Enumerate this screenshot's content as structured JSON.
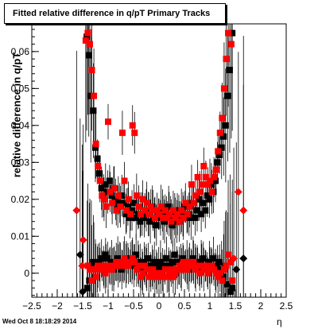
{
  "title": "Fitted relative difference in q/pT  Primary Tracks",
  "timestamp": "Wed Oct  8 18:18:29 2014",
  "chart_data": {
    "type": "scatter",
    "xlabel": "η",
    "ylabel": "relative difference in q/pT",
    "xlim": [
      -2.5,
      2.5
    ],
    "ylim": [
      -0.0065,
      0.0675
    ],
    "x_ticks": [
      -2.5,
      -2,
      -1.5,
      -1,
      -0.5,
      0,
      0.5,
      1,
      1.5,
      2,
      2.5
    ],
    "x_tick_labels": [
      "−2.5",
      "−2",
      "−1.5",
      "−1",
      "−0.5",
      "0",
      "0.5",
      "1",
      "1.5",
      "2",
      "2.5"
    ],
    "y_ticks": [
      0,
      0.01,
      0.02,
      0.03,
      0.04,
      0.05,
      0.06
    ],
    "y_tick_labels": [
      "0",
      "0.01",
      "0.02",
      "0.03",
      "0.04",
      "0.05",
      "0.06"
    ],
    "grid": false,
    "legend": "none",
    "series": [
      {
        "color": "#000000",
        "marker": "square",
        "points": [
          [
            -1.42,
            0.064
          ],
          [
            -1.38,
            0.059
          ],
          [
            -1.34,
            0.048
          ],
          [
            -1.29,
            0.044
          ],
          [
            -1.25,
            0.034
          ],
          [
            -1.21,
            0.031
          ],
          [
            -1.17,
            0.027
          ],
          [
            -1.13,
            0.023
          ],
          [
            -1.09,
            0.021
          ],
          [
            -1.05,
            0.024
          ],
          [
            -1.01,
            0.022
          ],
          [
            -0.97,
            0.025
          ],
          [
            -0.93,
            0.021
          ],
          [
            -0.89,
            0.023
          ],
          [
            -0.85,
            0.02
          ],
          [
            -0.81,
            0.018
          ],
          [
            -0.77,
            0.019
          ],
          [
            -0.73,
            0.021
          ],
          [
            -0.69,
            0.019
          ],
          [
            -0.65,
            0.016
          ],
          [
            -0.61,
            0.018
          ],
          [
            -0.57,
            0.015
          ],
          [
            -0.53,
            0.017
          ],
          [
            -0.49,
            0.019
          ],
          [
            -0.45,
            0.015
          ],
          [
            -0.41,
            0.016
          ],
          [
            -0.37,
            0.014
          ],
          [
            -0.33,
            0.016
          ],
          [
            -0.29,
            0.015
          ],
          [
            -0.25,
            0.017
          ],
          [
            -0.21,
            0.016
          ],
          [
            -0.17,
            0.014
          ],
          [
            -0.13,
            0.018
          ],
          [
            -0.09,
            0.015
          ],
          [
            -0.05,
            0.013
          ],
          [
            -0.01,
            0.016
          ],
          [
            0.03,
            0.015
          ],
          [
            0.07,
            0.017
          ],
          [
            0.11,
            0.014
          ],
          [
            0.15,
            0.016
          ],
          [
            0.19,
            0.018
          ],
          [
            0.23,
            0.015
          ],
          [
            0.27,
            0.013
          ],
          [
            0.31,
            0.016
          ],
          [
            0.35,
            0.014
          ],
          [
            0.39,
            0.017
          ],
          [
            0.43,
            0.015
          ],
          [
            0.47,
            0.016
          ],
          [
            0.51,
            0.018
          ],
          [
            0.55,
            0.015
          ],
          [
            0.59,
            0.016
          ],
          [
            0.63,
            0.015
          ],
          [
            0.67,
            0.019
          ],
          [
            0.71,
            0.015
          ],
          [
            0.75,
            0.017
          ],
          [
            0.79,
            0.02
          ],
          [
            0.83,
            0.016
          ],
          [
            0.87,
            0.019
          ],
          [
            0.91,
            0.017
          ],
          [
            0.95,
            0.021
          ],
          [
            0.99,
            0.02
          ],
          [
            1.03,
            0.024
          ],
          [
            1.07,
            0.022
          ],
          [
            1.11,
            0.025
          ],
          [
            1.15,
            0.03
          ],
          [
            1.19,
            0.032
          ],
          [
            1.23,
            0.034
          ],
          [
            1.27,
            0.037
          ],
          [
            1.31,
            0.04
          ],
          [
            1.35,
            0.048
          ],
          [
            1.39,
            0.055
          ],
          [
            1.44,
            0.065
          ],
          [
            -1.41,
            -0.004
          ],
          [
            -1.37,
            -0.002
          ],
          [
            -1.33,
            0.002
          ],
          [
            -1.29,
            0.003
          ],
          [
            -1.25,
            -0.001
          ],
          [
            -1.21,
            0.001
          ],
          [
            -1.17,
            0.003
          ],
          [
            -1.13,
            0.004
          ],
          [
            -1.09,
            0.002
          ],
          [
            -1.05,
            0.005
          ],
          [
            -1.01,
            0.004
          ],
          [
            -0.97,
            0.002
          ],
          [
            -0.93,
            0.003
          ],
          [
            -0.89,
            0.001
          ],
          [
            -0.85,
            0.002
          ],
          [
            -0.81,
            0.004
          ],
          [
            -0.77,
            0.003
          ],
          [
            -0.73,
            0.001
          ],
          [
            -0.69,
            0.003
          ],
          [
            -0.65,
            0.002
          ],
          [
            -0.61,
            0.004
          ],
          [
            -0.57,
            0.002
          ],
          [
            -0.53,
            0.003
          ],
          [
            -0.49,
            0.002
          ],
          [
            -0.45,
            0.005
          ],
          [
            -0.41,
            0.003
          ],
          [
            -0.37,
            0.002
          ],
          [
            -0.33,
            0.001
          ],
          [
            -0.29,
            0.003
          ],
          [
            -0.25,
            0.002
          ],
          [
            -0.21,
            0.004
          ],
          [
            -0.17,
            0.001
          ],
          [
            -0.13,
            0.002
          ],
          [
            -0.09,
            0.003
          ],
          [
            -0.05,
            0.001
          ],
          [
            -0.01,
            0.002
          ],
          [
            0.03,
            0.003
          ],
          [
            0.07,
            0.001
          ],
          [
            0.11,
            0.002
          ],
          [
            0.15,
            0.004
          ],
          [
            0.19,
            0.001
          ],
          [
            0.23,
            0.002
          ],
          [
            0.27,
            0.003
          ],
          [
            0.31,
            0.005
          ],
          [
            0.35,
            0.003
          ],
          [
            0.39,
            0.001
          ],
          [
            0.43,
            0.002
          ],
          [
            0.47,
            0.004
          ],
          [
            0.51,
            0.002
          ],
          [
            0.55,
            0.003
          ],
          [
            0.59,
            0.001
          ],
          [
            0.63,
            0.002
          ],
          [
            0.67,
            0.004
          ],
          [
            0.71,
            0.002
          ],
          [
            0.75,
            0.003
          ],
          [
            0.79,
            0.001
          ],
          [
            0.83,
            0.003
          ],
          [
            0.87,
            0.004
          ],
          [
            0.91,
            0.002
          ],
          [
            0.95,
            0.001
          ],
          [
            0.99,
            0.003
          ],
          [
            1.03,
            0.002
          ],
          [
            1.07,
            0.004
          ],
          [
            1.11,
            0.001
          ],
          [
            1.15,
            0.002
          ],
          [
            1.19,
            0.003
          ],
          [
            1.23,
            0.001
          ],
          [
            1.27,
            -0.001
          ],
          [
            1.31,
            0.002
          ],
          [
            1.35,
            -0.003
          ],
          [
            1.4,
            -0.005
          ],
          [
            1.44,
            -0.004
          ],
          [
            -1.5,
            -0.005
          ],
          [
            -1.55,
            0.005
          ],
          [
            1.52,
            0.001
          ],
          [
            1.66,
            0.004
          ]
        ]
      },
      {
        "color": "#ff0000",
        "marker": "square",
        "points": [
          [
            -1.44,
            0.063
          ],
          [
            -1.4,
            0.065
          ],
          [
            -1.36,
            0.062
          ],
          [
            -1.32,
            0.055
          ],
          [
            -1.28,
            0.048
          ],
          [
            -1.24,
            0.035
          ],
          [
            -1.2,
            0.029
          ],
          [
            -1.16,
            0.025
          ],
          [
            -1.12,
            0.021
          ],
          [
            -1.08,
            0.02
          ],
          [
            -1.04,
            0.018
          ],
          [
            -1.0,
            0.041
          ],
          [
            -0.96,
            0.022
          ],
          [
            -0.92,
            0.019
          ],
          [
            -0.88,
            0.023
          ],
          [
            -0.84,
            0.017
          ],
          [
            -0.8,
            0.021
          ],
          [
            -0.76,
            0.018
          ],
          [
            -0.72,
            0.038
          ],
          [
            -0.68,
            0.025
          ],
          [
            -0.64,
            0.017
          ],
          [
            -0.6,
            0.02
          ],
          [
            -0.56,
            0.016
          ],
          [
            -0.52,
            0.04
          ],
          [
            -0.48,
            0.038
          ],
          [
            -0.44,
            0.021
          ],
          [
            -0.4,
            0.018
          ],
          [
            -0.36,
            0.016
          ],
          [
            -0.32,
            0.02
          ],
          [
            -0.28,
            0.017
          ],
          [
            -0.24,
            0.019
          ],
          [
            -0.2,
            0.016
          ],
          [
            -0.16,
            0.018
          ],
          [
            -0.12,
            0.017
          ],
          [
            -0.08,
            0.015
          ],
          [
            -0.04,
            0.017
          ],
          [
            0.0,
            0.016
          ],
          [
            0.04,
            0.018
          ],
          [
            0.08,
            0.015
          ],
          [
            0.12,
            0.017
          ],
          [
            0.16,
            0.015
          ],
          [
            0.2,
            0.016
          ],
          [
            0.24,
            0.014
          ],
          [
            0.28,
            0.017
          ],
          [
            0.32,
            0.015
          ],
          [
            0.36,
            0.016
          ],
          [
            0.4,
            0.014
          ],
          [
            0.44,
            0.017
          ],
          [
            0.48,
            0.015
          ],
          [
            0.52,
            0.019
          ],
          [
            0.56,
            0.016
          ],
          [
            0.6,
            0.018
          ],
          [
            0.64,
            0.024
          ],
          [
            0.68,
            0.019
          ],
          [
            0.72,
            0.021
          ],
          [
            0.76,
            0.026
          ],
          [
            0.8,
            0.022
          ],
          [
            0.84,
            0.024
          ],
          [
            0.88,
            0.029
          ],
          [
            0.92,
            0.026
          ],
          [
            0.96,
            0.024
          ],
          [
            1.0,
            0.025
          ],
          [
            1.04,
            0.022
          ],
          [
            1.08,
            0.026
          ],
          [
            1.12,
            0.028
          ],
          [
            1.16,
            0.033
          ],
          [
            1.2,
            0.038
          ],
          [
            1.24,
            0.042
          ],
          [
            1.28,
            0.05
          ],
          [
            1.32,
            0.058
          ],
          [
            1.36,
            0.065
          ],
          [
            1.42,
            0.062
          ],
          [
            -1.4,
            0.002
          ],
          [
            -1.36,
            0.001
          ],
          [
            -1.32,
            -0.002
          ],
          [
            -1.28,
            0.001
          ],
          [
            -1.24,
            -0.001
          ],
          [
            -1.2,
            0.002
          ],
          [
            -1.16,
            0.001
          ],
          [
            -1.12,
            0.002
          ],
          [
            -1.08,
            0.001
          ],
          [
            -1.04,
            0.002
          ],
          [
            -1.0,
            0.001
          ],
          [
            -0.96,
            0.002
          ],
          [
            -0.92,
            0.001
          ],
          [
            -0.88,
            0.002
          ],
          [
            -0.84,
            0.003
          ],
          [
            -0.8,
            0.002
          ],
          [
            -0.76,
            0.003
          ],
          [
            -0.72,
            0.002
          ],
          [
            -0.68,
            0.004
          ],
          [
            -0.64,
            0.003
          ],
          [
            -0.6,
            0.002
          ],
          [
            -0.56,
            0.003
          ],
          [
            -0.52,
            0.004
          ],
          [
            -0.48,
            0.003
          ],
          [
            -0.44,
            0.001
          ],
          [
            -0.4,
            0.002
          ],
          [
            -0.36,
            -0.001
          ],
          [
            -0.32,
            0.0
          ],
          [
            -0.28,
            0.002
          ],
          [
            -0.24,
            0.001
          ],
          [
            -0.2,
            -0.001
          ],
          [
            -0.16,
            0.0
          ],
          [
            -0.12,
            0.001
          ],
          [
            -0.08,
            -0.001
          ],
          [
            -0.04,
            0.0
          ],
          [
            0.0,
            -0.001
          ],
          [
            0.04,
            0.0
          ],
          [
            0.08,
            -0.001
          ],
          [
            0.12,
            0.001
          ],
          [
            0.16,
            -0.001
          ],
          [
            0.2,
            0.0
          ],
          [
            0.24,
            0.001
          ],
          [
            0.28,
            -0.001
          ],
          [
            0.32,
            0.0
          ],
          [
            0.36,
            0.001
          ],
          [
            0.4,
            0.002
          ],
          [
            0.44,
            0.001
          ],
          [
            0.48,
            0.003
          ],
          [
            0.52,
            0.002
          ],
          [
            0.56,
            0.001
          ],
          [
            0.6,
            0.003
          ],
          [
            0.64,
            0.002
          ],
          [
            0.68,
            0.003
          ],
          [
            0.72,
            0.001
          ],
          [
            0.76,
            0.002
          ],
          [
            0.8,
            0.0
          ],
          [
            0.84,
            0.002
          ],
          [
            0.88,
            0.001
          ],
          [
            0.92,
            0.002
          ],
          [
            0.96,
            0.0
          ],
          [
            1.0,
            0.001
          ],
          [
            1.04,
            0.002
          ],
          [
            1.08,
            0.001
          ],
          [
            1.12,
            0.0
          ],
          [
            1.16,
            -0.001
          ],
          [
            1.2,
            0.0
          ],
          [
            1.24,
            -0.002
          ],
          [
            1.28,
            0.001
          ],
          [
            1.32,
            0.002
          ],
          [
            1.36,
            0.005
          ],
          [
            1.4,
            0.003
          ],
          [
            1.44,
            -0.002
          ],
          [
            -1.49,
            0.009
          ],
          [
            -1.51,
            0.002
          ],
          [
            -1.62,
            0.017
          ],
          [
            -1.05,
            0.0
          ],
          [
            1.47,
            0.004
          ],
          [
            1.56,
            0.022
          ],
          [
            1.66,
            0.017
          ]
        ]
      }
    ]
  }
}
